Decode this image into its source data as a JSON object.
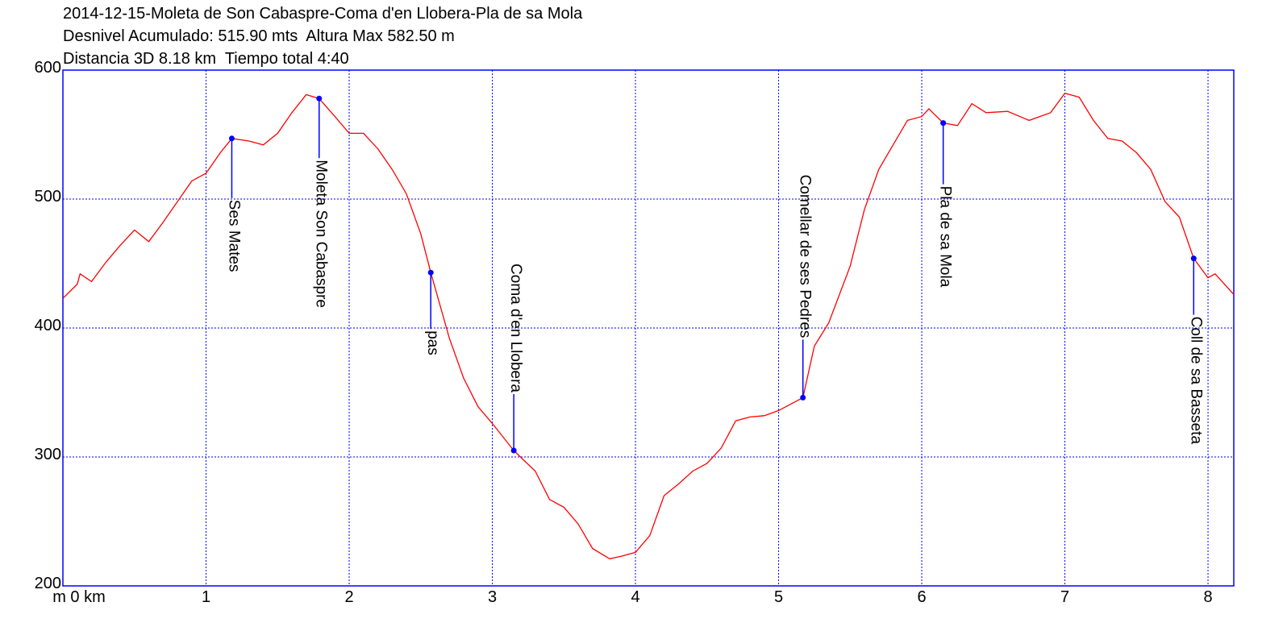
{
  "chart_data": {
    "type": "line",
    "title": [
      "2014-12-15-Moleta de Son Cabaspre-Coma d'en Llobera-Pla de sa Mola",
      "Desnivel Acumulado: 515.90 mts  Altura Max 582.50 m",
      "Distancia 3D 8.18 km  Tiempo total 4:40"
    ],
    "x": [
      0,
      0.1,
      0.12,
      0.2,
      0.3,
      0.4,
      0.5,
      0.6,
      0.7,
      0.8,
      0.9,
      1.0,
      1.1,
      1.18,
      1.3,
      1.4,
      1.5,
      1.6,
      1.7,
      1.79,
      1.9,
      2.0,
      2.1,
      2.2,
      2.3,
      2.4,
      2.5,
      2.57,
      2.7,
      2.8,
      2.9,
      3.0,
      3.15,
      3.3,
      3.4,
      3.5,
      3.6,
      3.7,
      3.82,
      3.9,
      4.0,
      4.1,
      4.2,
      4.3,
      4.4,
      4.5,
      4.6,
      4.7,
      4.8,
      4.9,
      5.0,
      5.17,
      5.25,
      5.35,
      5.5,
      5.6,
      5.7,
      5.8,
      5.9,
      6.0,
      6.05,
      6.15,
      6.25,
      6.35,
      6.45,
      6.6,
      6.75,
      6.9,
      7.0,
      7.1,
      7.2,
      7.3,
      7.4,
      7.5,
      7.6,
      7.7,
      7.8,
      7.9,
      8.0,
      8.05,
      8.18
    ],
    "series": [
      {
        "color": "#ff0000",
        "values": [
          423,
          434,
          442,
          436,
          451,
          464,
          476,
          467,
          482,
          498,
          514,
          520,
          536,
          547,
          545,
          542,
          551,
          567,
          581,
          578,
          564,
          551,
          551,
          539,
          523,
          504,
          473,
          443,
          392,
          361,
          339,
          326,
          305,
          289,
          267,
          261,
          248,
          229,
          221,
          223,
          226,
          239,
          270,
          279,
          289,
          295,
          307,
          328,
          331,
          332,
          336,
          346,
          386,
          404,
          448,
          492,
          523,
          542,
          561,
          564,
          570,
          559,
          557,
          574,
          567,
          568,
          561,
          567,
          582,
          579,
          561,
          547,
          545,
          536,
          523,
          498,
          486,
          454,
          439,
          442,
          426
        ]
      }
    ],
    "waypoints": [
      {
        "name": "Ses Mates",
        "x": 1.18,
        "y": 547
      },
      {
        "name": "Moleta Son Cabaspre",
        "x": 1.79,
        "y": 578
      },
      {
        "name": "pas",
        "x": 2.57,
        "y": 443
      },
      {
        "name": "Coma d'en Llobera",
        "x": 3.15,
        "y": 305
      },
      {
        "name": "Comellar de ses Pedres",
        "x": 5.17,
        "y": 346
      },
      {
        "name": "Pla de sa Mola",
        "x": 6.15,
        "y": 559
      },
      {
        "name": "Coll de sa Basseta",
        "x": 7.9,
        "y": 454
      }
    ],
    "marker_color": "#0000ff",
    "xlim": [
      0,
      8.18
    ],
    "ylim": [
      200,
      600
    ],
    "xticks": [
      {
        "value": 0,
        "label": "m 0 km"
      },
      1,
      2,
      3,
      4,
      5,
      6,
      7,
      8
    ],
    "yticks": [
      200,
      300,
      400,
      500,
      600
    ],
    "grid": true
  }
}
